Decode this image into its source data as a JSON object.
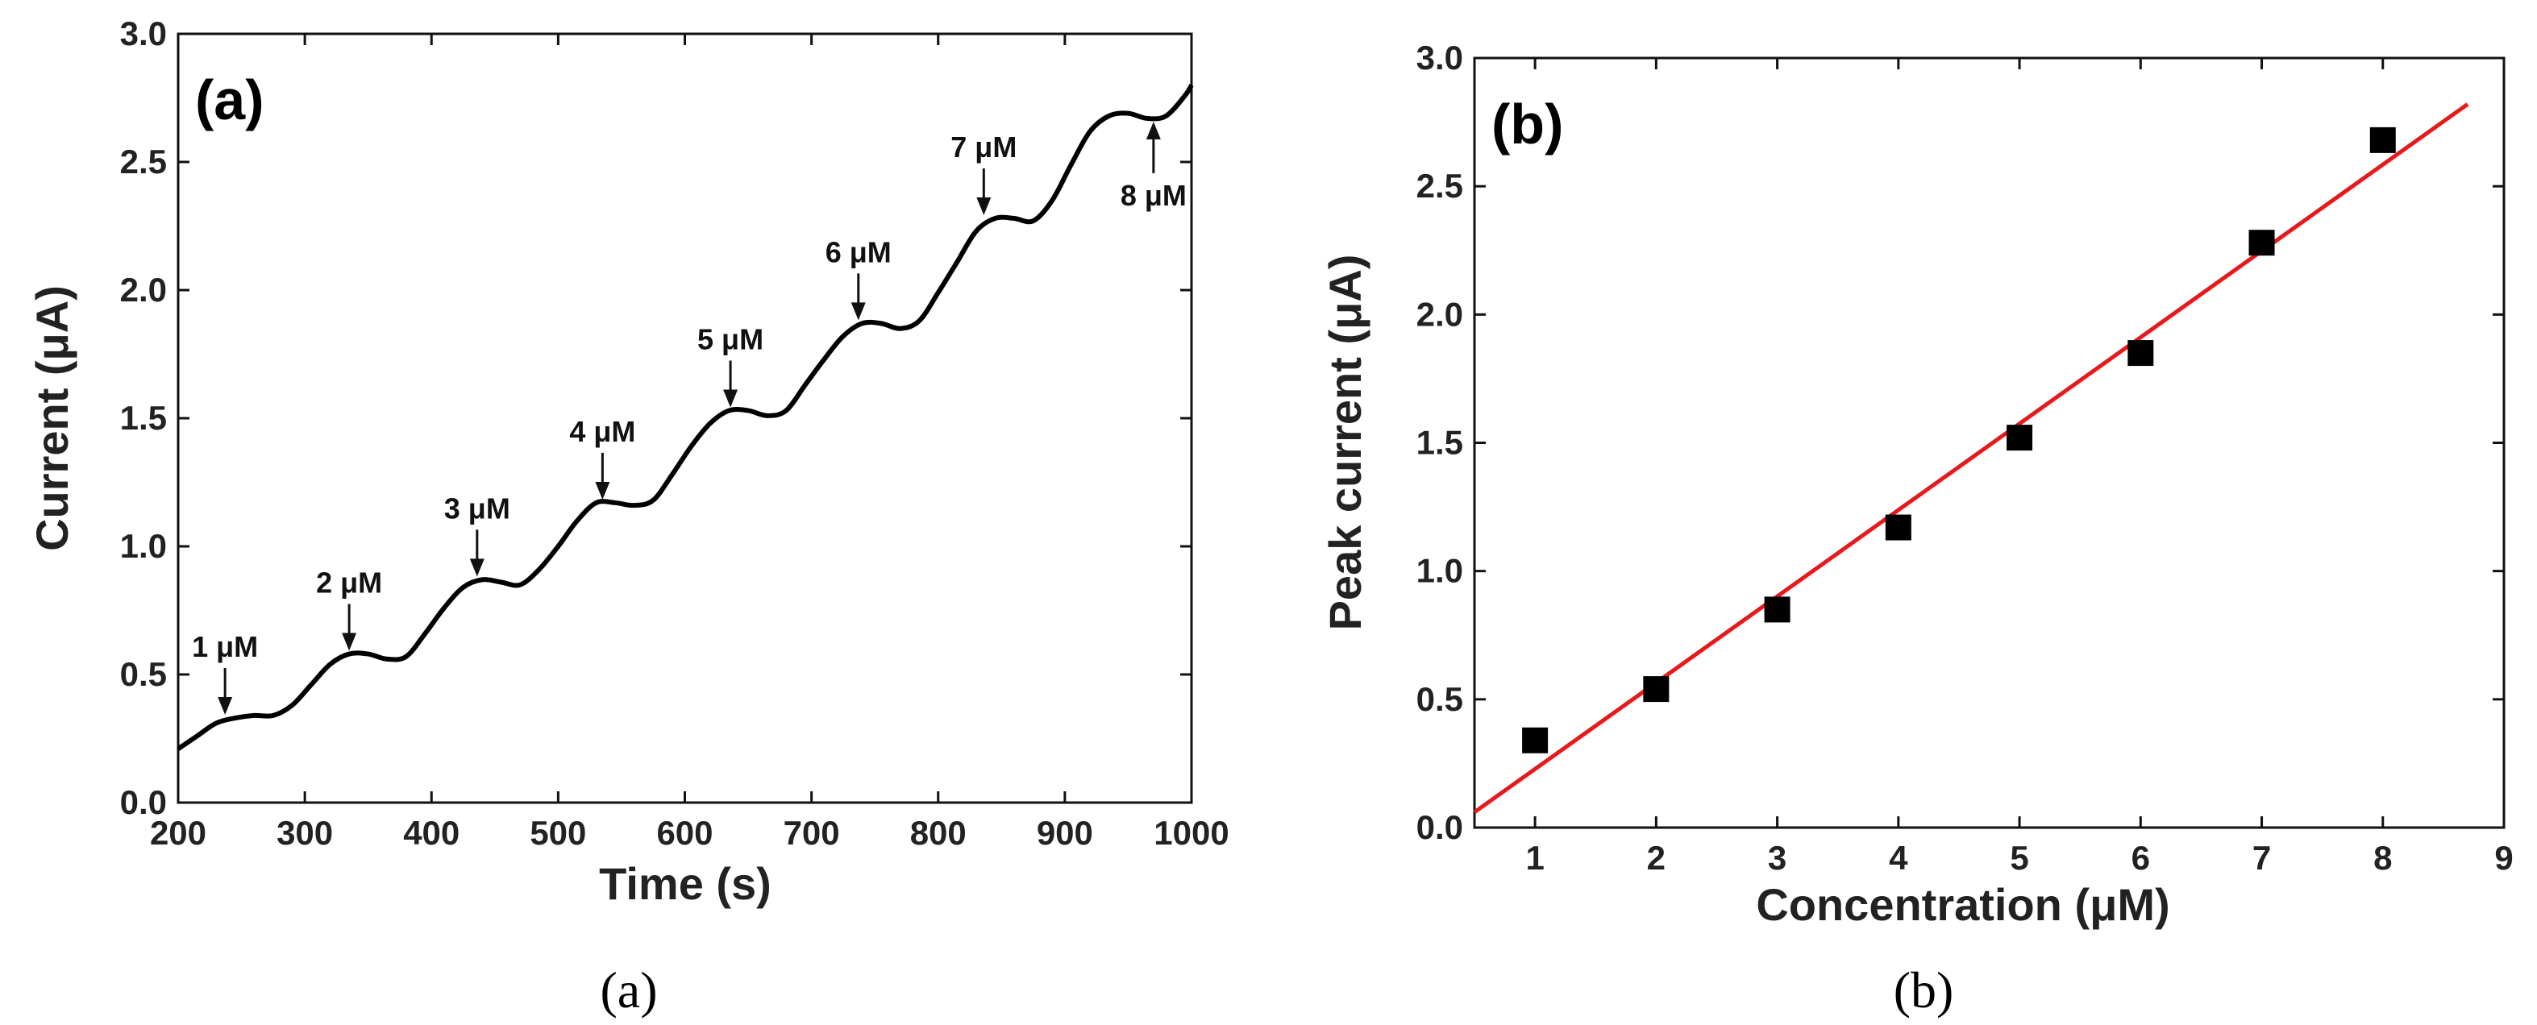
{
  "chart_data": [
    {
      "id": "a",
      "type": "line",
      "panel_label": "(a)",
      "caption": "(a)",
      "title": "",
      "xlabel": "Time (s)",
      "ylabel": "Current (μA)",
      "xlim": [
        200,
        1000
      ],
      "ylim": [
        0.0,
        3.0
      ],
      "xticks": [
        "200",
        "300",
        "400",
        "500",
        "600",
        "700",
        "800",
        "900",
        "1000"
      ],
      "yticks": [
        "0.0",
        "0.5",
        "1.0",
        "1.5",
        "2.0",
        "2.5",
        "3.0"
      ],
      "grid": false,
      "series": [
        {
          "name": "current",
          "color": "#000000",
          "x": [
            200,
            215,
            230,
            245,
            260,
            275,
            290,
            305,
            320,
            335,
            350,
            365,
            380,
            395,
            410,
            425,
            440,
            455,
            470,
            485,
            500,
            515,
            530,
            545,
            560,
            575,
            590,
            605,
            620,
            635,
            650,
            665,
            680,
            695,
            710,
            725,
            740,
            755,
            770,
            785,
            800,
            815,
            830,
            845,
            860,
            875,
            890,
            905,
            920,
            935,
            950,
            965,
            980,
            995,
            1000
          ],
          "y": [
            0.21,
            0.26,
            0.31,
            0.33,
            0.34,
            0.34,
            0.38,
            0.46,
            0.54,
            0.58,
            0.58,
            0.56,
            0.57,
            0.66,
            0.76,
            0.84,
            0.87,
            0.86,
            0.85,
            0.91,
            1.0,
            1.1,
            1.17,
            1.17,
            1.16,
            1.18,
            1.28,
            1.39,
            1.48,
            1.53,
            1.53,
            1.51,
            1.53,
            1.63,
            1.73,
            1.82,
            1.87,
            1.87,
            1.85,
            1.88,
            1.99,
            2.11,
            2.23,
            2.28,
            2.28,
            2.27,
            2.35,
            2.49,
            2.62,
            2.68,
            2.69,
            2.67,
            2.68,
            2.76,
            2.8
          ]
        }
      ],
      "annotations": [
        {
          "label": "1 μM",
          "x": 237,
          "y": 0.33,
          "dir": "down"
        },
        {
          "label": "2 μM",
          "x": 335,
          "y": 0.58,
          "dir": "down"
        },
        {
          "label": "3 μM",
          "x": 436,
          "y": 0.87,
          "dir": "down"
        },
        {
          "label": "4 μM",
          "x": 535,
          "y": 1.17,
          "dir": "down"
        },
        {
          "label": "5 μM",
          "x": 636,
          "y": 1.53,
          "dir": "down"
        },
        {
          "label": "6 μM",
          "x": 737,
          "y": 1.87,
          "dir": "down"
        },
        {
          "label": "7 μM",
          "x": 836,
          "y": 2.28,
          "dir": "down"
        },
        {
          "label": "8 μM",
          "x": 970,
          "y": 2.67,
          "dir": "up"
        }
      ]
    },
    {
      "id": "b",
      "type": "scatter",
      "panel_label": "(b)",
      "caption": "(b)",
      "title": "",
      "xlabel": "Concentration (μM)",
      "ylabel": "Peak current (μA)",
      "xlim": [
        0.5,
        9
      ],
      "ylim": [
        0.0,
        3.0
      ],
      "xticks": [
        "1",
        "2",
        "3",
        "4",
        "5",
        "6",
        "7",
        "8",
        "9"
      ],
      "yticks": [
        "0.0",
        "0.5",
        "1.0",
        "1.5",
        "2.0",
        "2.5",
        "3.0"
      ],
      "grid": false,
      "series": [
        {
          "name": "Peak current",
          "color": "#000000",
          "marker": "square",
          "x": [
            1,
            2,
            3,
            4,
            5,
            6,
            7,
            8
          ],
          "y": [
            0.34,
            0.54,
            0.85,
            1.17,
            1.52,
            1.85,
            2.28,
            2.68
          ]
        }
      ],
      "fit_line": {
        "name": "linear fit",
        "color": "#e8191c",
        "x": [
          0.5,
          8.7
        ],
        "y": [
          0.06,
          2.82
        ]
      }
    }
  ]
}
